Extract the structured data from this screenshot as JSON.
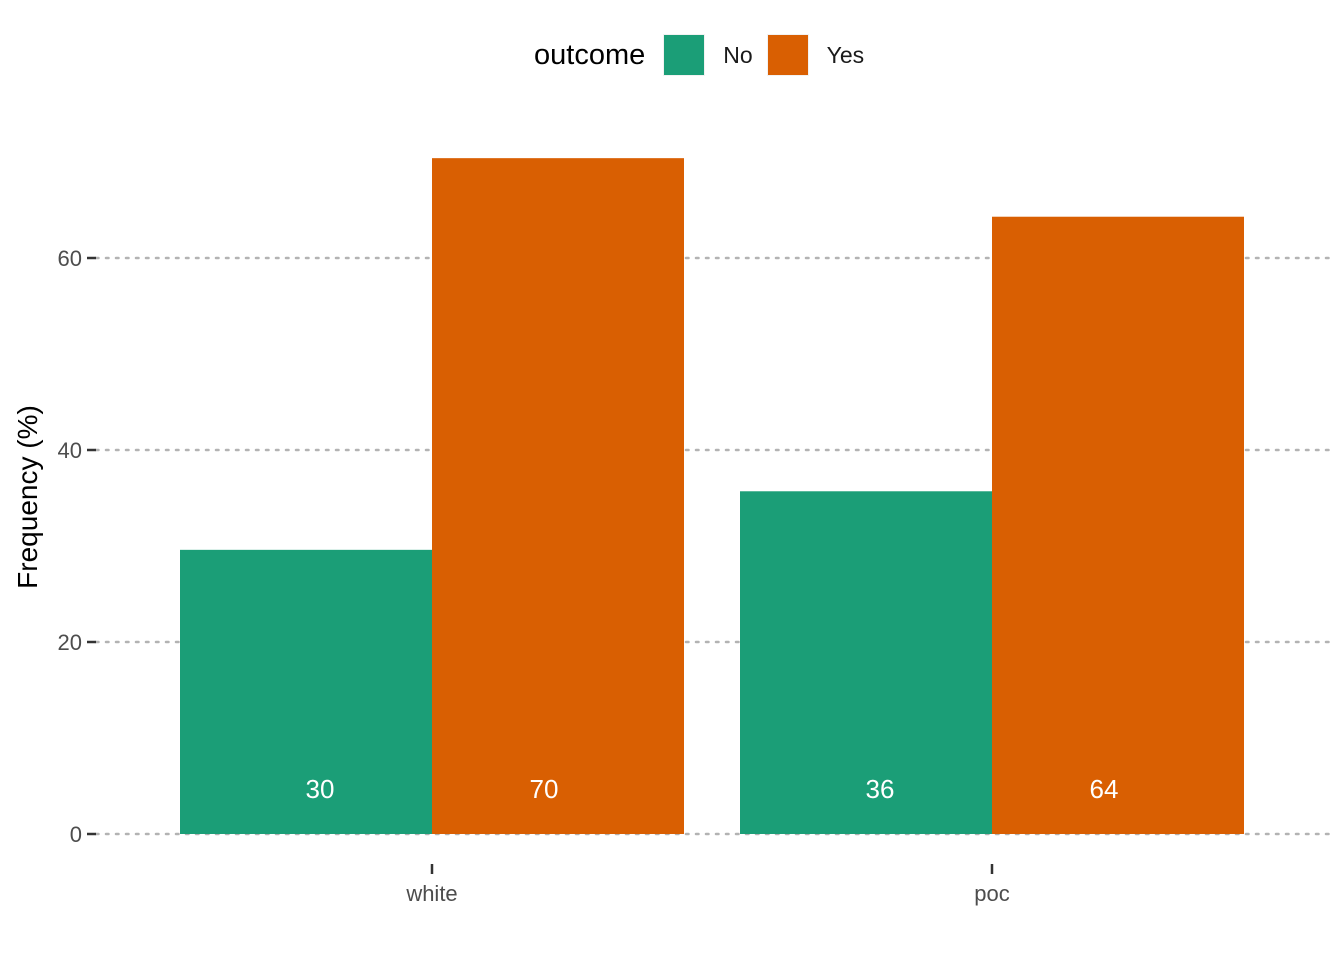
{
  "legend": {
    "title": "outcome",
    "items": [
      {
        "label": "No",
        "color": "#1B9E77"
      },
      {
        "label": "Yes",
        "color": "#D95F02"
      }
    ]
  },
  "chart_data": {
    "type": "bar",
    "categories": [
      "white",
      "poc"
    ],
    "series": [
      {
        "name": "No",
        "values": [
          29.6,
          35.7
        ],
        "labels": [
          "30",
          "36"
        ],
        "color": "#1B9E77"
      },
      {
        "name": "Yes",
        "values": [
          70.4,
          64.3
        ],
        "labels": [
          "70",
          "64"
        ],
        "color": "#D95F02"
      }
    ],
    "ylabel": "Frequency (%)",
    "xlabel": "",
    "ylim": [
      0,
      75
    ],
    "yticks": [
      0,
      20,
      40,
      60
    ],
    "grid": "horizontal dotted",
    "legend_position": "top"
  }
}
